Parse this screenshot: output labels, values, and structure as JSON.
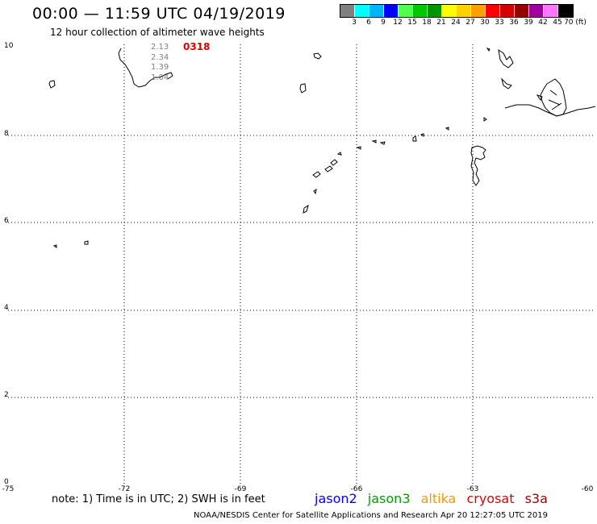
{
  "header": {
    "title": "00:00 — 11:59 UTC 04/19/2019",
    "subtitle": "12 hour collection of altimeter wave heights"
  },
  "legend": {
    "labels": [
      "3",
      "6",
      "9",
      "12",
      "15",
      "18",
      "21",
      "24",
      "27",
      "30",
      "33",
      "36",
      "39",
      "42",
      "45",
      "70 (ft)"
    ],
    "colors": [
      "#808080",
      "#00ffff",
      "#00b4ff",
      "#0000ff",
      "#50ff50",
      "#00c800",
      "#009600",
      "#ffff00",
      "#ffd200",
      "#ffa000",
      "#ff0000",
      "#d20000",
      "#960000",
      "#a000a0",
      "#ff78ff",
      "#000000"
    ]
  },
  "map": {
    "y_ticks": [
      "10",
      "8",
      "6",
      "4",
      "2",
      "0"
    ],
    "x_ticks": [
      "-75",
      "-72",
      "-69",
      "-66",
      "-63",
      "-60"
    ]
  },
  "observations": {
    "values": [
      "2.13",
      "2.34",
      "1.39",
      "1.04"
    ],
    "time_label": "0318"
  },
  "footer": {
    "note": "note:  1) Time is in UTC;  2) SWH is in feet",
    "satellites": [
      {
        "name": "jason2",
        "color": "#0000ff"
      },
      {
        "name": "jason3",
        "color": "#00a000"
      },
      {
        "name": "altika",
        "color": "#ff9600"
      },
      {
        "name": "cryosat",
        "color": "#e00000"
      },
      {
        "name": "s3a",
        "color": "#a00000"
      }
    ],
    "credit": "NOAA/NESDIS Center for Satellite Applications and Research    Apr 20 12:27:05 UTC 2019"
  }
}
